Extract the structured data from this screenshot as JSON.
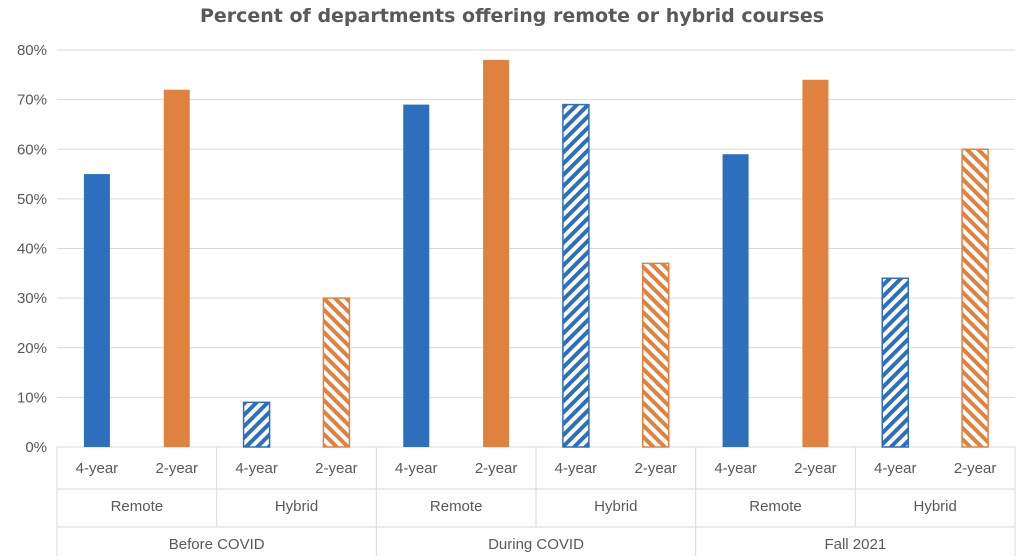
{
  "chart_data": {
    "type": "bar",
    "title": "Percent of departments offering remote or hybrid courses",
    "ylim": [
      0,
      80
    ],
    "y_ticks": [
      "0%",
      "10%",
      "20%",
      "30%",
      "40%",
      "50%",
      "60%",
      "70%",
      "80%"
    ],
    "grid": true,
    "periods": [
      {
        "name": "Before COVID",
        "modes": [
          {
            "name": "Remote",
            "bars": [
              {
                "label": "4-year",
                "value": 55
              },
              {
                "label": "2-year",
                "value": 72
              }
            ]
          },
          {
            "name": "Hybrid",
            "bars": [
              {
                "label": "4-year",
                "value": 9
              },
              {
                "label": "2-year",
                "value": 30
              }
            ]
          }
        ]
      },
      {
        "name": "During COVID",
        "modes": [
          {
            "name": "Remote",
            "bars": [
              {
                "label": "4-year",
                "value": 69
              },
              {
                "label": "2-year",
                "value": 78
              }
            ]
          },
          {
            "name": "Hybrid",
            "bars": [
              {
                "label": "4-year",
                "value": 69
              },
              {
                "label": "2-year",
                "value": 37
              }
            ]
          }
        ]
      },
      {
        "name": "Fall 2021",
        "modes": [
          {
            "name": "Remote",
            "bars": [
              {
                "label": "4-year",
                "value": 59
              },
              {
                "label": "2-year",
                "value": 74
              }
            ]
          },
          {
            "name": "Hybrid",
            "bars": [
              {
                "label": "4-year",
                "value": 34
              },
              {
                "label": "2-year",
                "value": 60
              }
            ]
          }
        ]
      }
    ],
    "colors": {
      "4-year": "#2e6fbd",
      "2-year": "#e0823f",
      "remote_fill": "solid",
      "hybrid_fill": "diagonal-stripes"
    }
  }
}
